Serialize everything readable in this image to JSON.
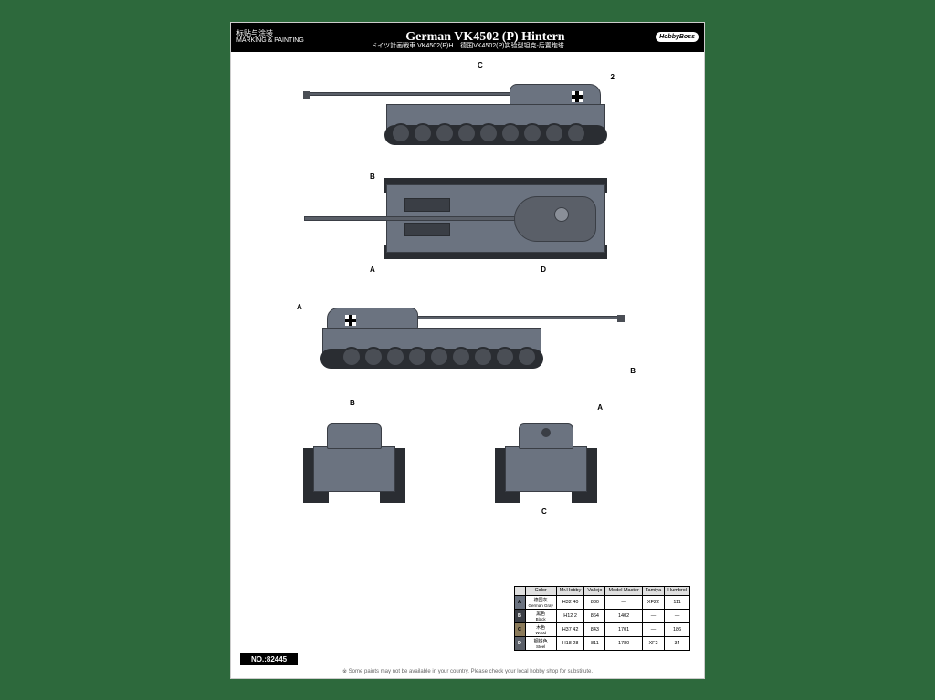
{
  "header": {
    "marking_cn": "标贴与涂装",
    "marking_en": "MARKING & PAINTING",
    "title": "German VK4502 (P) Hintern",
    "subtitle_jp": "ドイツ計画戦車 VK4502(P)H",
    "subtitle_cn": "德国VK4502(P)实验型坦克-后置炮塔",
    "logo": "HobbyBoss"
  },
  "markers": {
    "a": "A",
    "b": "B",
    "c": "C",
    "d": "D",
    "two": "2"
  },
  "color_table": {
    "headers": [
      "Color",
      "Mr.Hobby",
      "Vallejo",
      "Model Master",
      "Tamiya",
      "Humbrol"
    ],
    "rows": [
      {
        "id": "A",
        "name_cn": "德国灰",
        "name_en": "German Gray",
        "bg": "bg-a",
        "mh": "H32 40",
        "va": "830",
        "mm": "—",
        "ta": "XF22",
        "hu": "111"
      },
      {
        "id": "B",
        "name_cn": "黑色",
        "name_en": "Black",
        "bg": "bg-b",
        "mh": "H12 2",
        "va": "864",
        "mm": "1402",
        "ta": "—",
        "hu": "—"
      },
      {
        "id": "C",
        "name_cn": "木色",
        "name_en": "Wood",
        "bg": "bg-c",
        "mh": "H37 42",
        "va": "843",
        "mm": "1701",
        "ta": "—",
        "hu": "186"
      },
      {
        "id": "D",
        "name_cn": "钢铁色",
        "name_en": "Steel",
        "bg": "bg-d",
        "mh": "H18 28",
        "va": "811",
        "mm": "1780",
        "ta": "XF2",
        "hu": "34"
      }
    ]
  },
  "item_no": "NO.:82445",
  "footer_note": "※ Some paints may not be available in your country. Please check your local hobby shop for substitute.",
  "colors": {
    "page_bg": "#2d693c",
    "sheet_bg": "#ffffff",
    "header_bg": "#000000",
    "tank_body": "#6b7380",
    "tank_dark": "#3a3e45",
    "tracks": "#2a2d32"
  }
}
